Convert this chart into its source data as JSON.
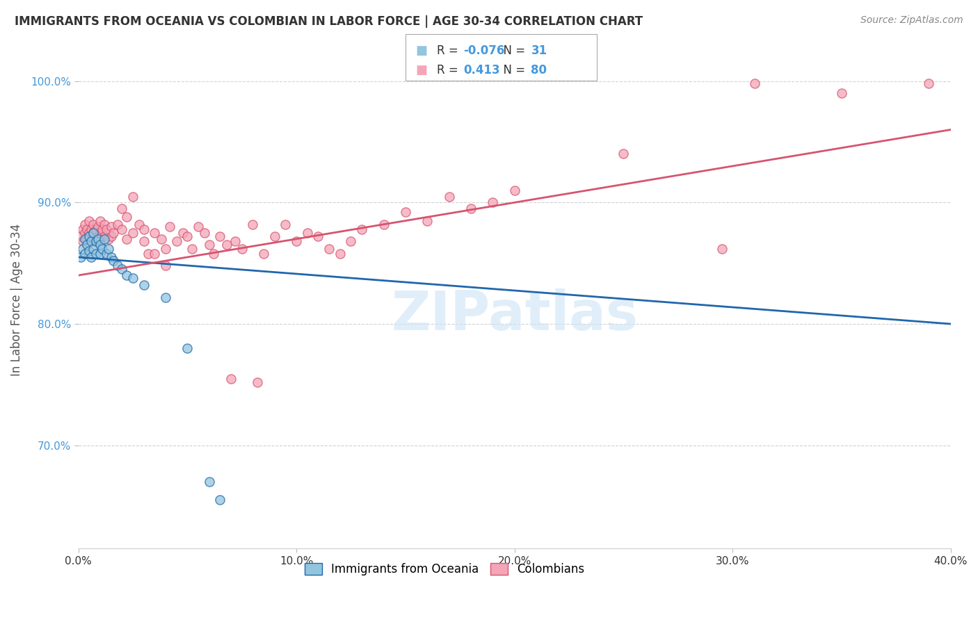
{
  "title": "IMMIGRANTS FROM OCEANIA VS COLOMBIAN IN LABOR FORCE | AGE 30-34 CORRELATION CHART",
  "source": "Source: ZipAtlas.com",
  "xlabel": "",
  "ylabel": "In Labor Force | Age 30-34",
  "xlim": [
    0.0,
    0.4
  ],
  "ylim": [
    0.615,
    1.025
  ],
  "xticks": [
    0.0,
    0.1,
    0.2,
    0.3,
    0.4
  ],
  "xtick_labels": [
    "0.0%",
    "10.0%",
    "20.0%",
    "30.0%",
    "40.0%"
  ],
  "yticks": [
    0.7,
    0.8,
    0.9,
    1.0
  ],
  "ytick_labels": [
    "70.0%",
    "80.0%",
    "90.0%",
    "100.0%"
  ],
  "color_blue": "#92c5de",
  "color_pink": "#f4a5b8",
  "color_blue_line": "#2166ac",
  "color_pink_line": "#d6546e",
  "legend_R_blue": "-0.076",
  "legend_N_blue": "31",
  "legend_R_pink": "0.413",
  "legend_N_pink": "80",
  "watermark": "ZIPatlas",
  "blue_trend": [
    0.0,
    0.855,
    0.4,
    0.8
  ],
  "pink_trend": [
    0.0,
    0.84,
    0.4,
    0.96
  ],
  "blue_points": [
    [
      0.001,
      0.855
    ],
    [
      0.002,
      0.862
    ],
    [
      0.003,
      0.87
    ],
    [
      0.003,
      0.858
    ],
    [
      0.004,
      0.865
    ],
    [
      0.005,
      0.872
    ],
    [
      0.005,
      0.86
    ],
    [
      0.006,
      0.868
    ],
    [
      0.006,
      0.855
    ],
    [
      0.007,
      0.875
    ],
    [
      0.007,
      0.862
    ],
    [
      0.008,
      0.868
    ],
    [
      0.008,
      0.858
    ],
    [
      0.009,
      0.87
    ],
    [
      0.01,
      0.865
    ],
    [
      0.01,
      0.858
    ],
    [
      0.011,
      0.862
    ],
    [
      0.012,
      0.87
    ],
    [
      0.013,
      0.858
    ],
    [
      0.014,
      0.862
    ],
    [
      0.015,
      0.855
    ],
    [
      0.016,
      0.852
    ],
    [
      0.018,
      0.848
    ],
    [
      0.02,
      0.845
    ],
    [
      0.022,
      0.84
    ],
    [
      0.025,
      0.838
    ],
    [
      0.03,
      0.832
    ],
    [
      0.04,
      0.822
    ],
    [
      0.05,
      0.78
    ],
    [
      0.06,
      0.67
    ],
    [
      0.065,
      0.655
    ]
  ],
  "pink_points": [
    [
      0.001,
      0.872
    ],
    [
      0.002,
      0.878
    ],
    [
      0.002,
      0.868
    ],
    [
      0.003,
      0.875
    ],
    [
      0.003,
      0.882
    ],
    [
      0.004,
      0.878
    ],
    [
      0.004,
      0.87
    ],
    [
      0.005,
      0.885
    ],
    [
      0.005,
      0.875
    ],
    [
      0.006,
      0.878
    ],
    [
      0.006,
      0.87
    ],
    [
      0.007,
      0.882
    ],
    [
      0.007,
      0.875
    ],
    [
      0.008,
      0.878
    ],
    [
      0.008,
      0.87
    ],
    [
      0.009,
      0.88
    ],
    [
      0.009,
      0.872
    ],
    [
      0.01,
      0.885
    ],
    [
      0.01,
      0.875
    ],
    [
      0.011,
      0.878
    ],
    [
      0.012,
      0.872
    ],
    [
      0.012,
      0.882
    ],
    [
      0.013,
      0.878
    ],
    [
      0.014,
      0.87
    ],
    [
      0.015,
      0.88
    ],
    [
      0.015,
      0.872
    ],
    [
      0.016,
      0.875
    ],
    [
      0.018,
      0.882
    ],
    [
      0.02,
      0.895
    ],
    [
      0.02,
      0.878
    ],
    [
      0.022,
      0.888
    ],
    [
      0.022,
      0.87
    ],
    [
      0.025,
      0.905
    ],
    [
      0.025,
      0.875
    ],
    [
      0.028,
      0.882
    ],
    [
      0.03,
      0.878
    ],
    [
      0.03,
      0.868
    ],
    [
      0.032,
      0.858
    ],
    [
      0.035,
      0.875
    ],
    [
      0.035,
      0.858
    ],
    [
      0.038,
      0.87
    ],
    [
      0.04,
      0.862
    ],
    [
      0.04,
      0.848
    ],
    [
      0.042,
      0.88
    ],
    [
      0.045,
      0.868
    ],
    [
      0.048,
      0.875
    ],
    [
      0.05,
      0.872
    ],
    [
      0.052,
      0.862
    ],
    [
      0.055,
      0.88
    ],
    [
      0.058,
      0.875
    ],
    [
      0.06,
      0.865
    ],
    [
      0.062,
      0.858
    ],
    [
      0.065,
      0.872
    ],
    [
      0.068,
      0.865
    ],
    [
      0.07,
      0.755
    ],
    [
      0.072,
      0.868
    ],
    [
      0.075,
      0.862
    ],
    [
      0.08,
      0.882
    ],
    [
      0.082,
      0.752
    ],
    [
      0.085,
      0.858
    ],
    [
      0.09,
      0.872
    ],
    [
      0.095,
      0.882
    ],
    [
      0.1,
      0.868
    ],
    [
      0.105,
      0.875
    ],
    [
      0.11,
      0.872
    ],
    [
      0.115,
      0.862
    ],
    [
      0.12,
      0.858
    ],
    [
      0.125,
      0.868
    ],
    [
      0.13,
      0.878
    ],
    [
      0.14,
      0.882
    ],
    [
      0.15,
      0.892
    ],
    [
      0.16,
      0.885
    ],
    [
      0.17,
      0.905
    ],
    [
      0.18,
      0.895
    ],
    [
      0.19,
      0.9
    ],
    [
      0.2,
      0.91
    ],
    [
      0.25,
      0.94
    ],
    [
      0.295,
      0.862
    ],
    [
      0.31,
      0.998
    ],
    [
      0.35,
      0.99
    ],
    [
      0.39,
      0.998
    ]
  ]
}
